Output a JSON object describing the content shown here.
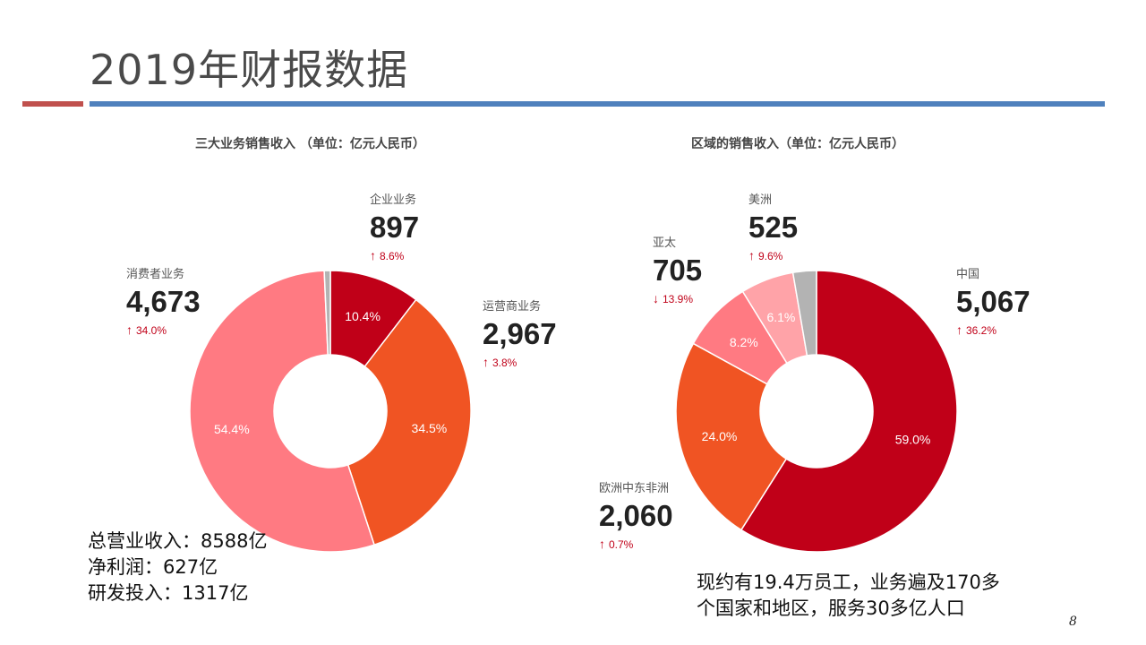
{
  "slide": {
    "title": "2019年财报数据",
    "summary": [
      "总营业收入：8588亿",
      "净利润：627亿",
      "研发投入：1317亿"
    ],
    "note": [
      "现约有19.4万员工，业务遍及170多",
      "个国家和地区，服务30多亿人口"
    ],
    "page_number": "8"
  },
  "chart_data": [
    {
      "type": "pie",
      "title": "三大业务销售收入 （单位：亿元人民币）",
      "unit": "亿元人民币",
      "slices": [
        {
          "name": "企业业务",
          "value": 897,
          "value_label": "897",
          "percent": 10.4,
          "percent_label": "10.4%",
          "change": "8.6%",
          "change_dir": "up",
          "color": "#c00018"
        },
        {
          "name": "运营商业务",
          "value": 2967,
          "value_label": "2,967",
          "percent": 34.5,
          "percent_label": "34.5%",
          "change": "3.8%",
          "change_dir": "up",
          "color": "#f05423"
        },
        {
          "name": "消费者业务",
          "value": 4673,
          "value_label": "4,673",
          "percent": 54.4,
          "percent_label": "54.4%",
          "change": "34.0%",
          "change_dir": "up",
          "color": "#ff7a82"
        },
        {
          "name": "",
          "value": 60,
          "percent": 0.7,
          "percent_label": "",
          "color": "#b3b3b3"
        }
      ]
    },
    {
      "type": "pie",
      "title": "区域的销售收入（单位：亿元人民币）",
      "unit": "亿元人民币",
      "slices": [
        {
          "name": "中国",
          "value": 5067,
          "value_label": "5,067",
          "percent": 59.0,
          "percent_label": "59.0%",
          "change": "36.2%",
          "change_dir": "up",
          "color": "#c00018"
        },
        {
          "name": "欧洲中东非洲",
          "value": 2060,
          "value_label": "2,060",
          "percent": 24.0,
          "percent_label": "24.0%",
          "change": "0.7%",
          "change_dir": "up",
          "color": "#f05423"
        },
        {
          "name": "亚太",
          "value": 705,
          "value_label": "705",
          "percent": 8.2,
          "percent_label": "8.2%",
          "change": "13.9%",
          "change_dir": "down",
          "color": "#ff7a82"
        },
        {
          "name": "美洲",
          "value": 525,
          "value_label": "525",
          "percent": 6.1,
          "percent_label": "6.1%",
          "change": "9.6%",
          "change_dir": "up",
          "color": "#ffa3a8"
        },
        {
          "name": "",
          "value": 231,
          "percent": 2.7,
          "percent_label": "",
          "color": "#b3b3b3"
        }
      ]
    }
  ]
}
